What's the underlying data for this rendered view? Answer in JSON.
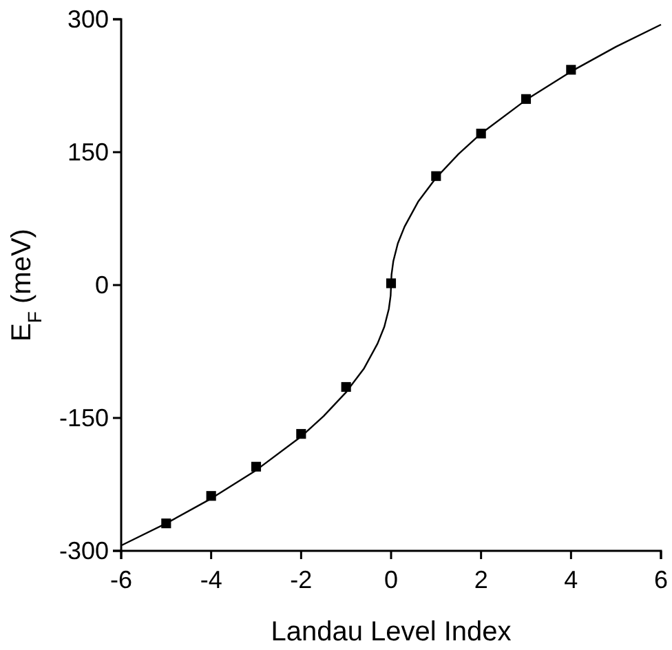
{
  "chart_data": {
    "type": "scatter",
    "xlabel": "Landau Level Index",
    "ylabel": "E$_{F}$ (meV)",
    "xlim": [
      -6,
      6
    ],
    "xticks": [
      -6,
      -4,
      -2,
      0,
      2,
      4,
      6
    ],
    "ylim": [
      -300,
      300
    ],
    "yticks": [
      -300,
      -150,
      0,
      150,
      300
    ],
    "series": [
      {
        "color": "#000000",
        "marker": "square",
        "x": [
          -5,
          -4,
          -3,
          -2,
          -1,
          0,
          1,
          2,
          3,
          4
        ],
        "values": [
          -269,
          -238,
          -205,
          -168,
          -115,
          2,
          123,
          171,
          210,
          243
        ]
      },
      {
        "type": "line",
        "color": "#000000",
        "marker": "none",
        "line_style": "solid",
        "x": [
          -6,
          -5,
          -4,
          -3,
          -2,
          -1.5,
          -1,
          -0.6,
          -0.3,
          -0.15,
          -0.05,
          -0.01,
          0,
          0.01,
          0.05,
          0.15,
          0.3,
          0.6,
          1,
          1.5,
          2,
          3,
          4,
          5,
          6
        ],
        "values": [
          -294,
          -269,
          -241,
          -209,
          -171,
          -148,
          -121,
          -94,
          -66,
          -47,
          -27,
          -12,
          0,
          12,
          27,
          47,
          66,
          94,
          121,
          148,
          171,
          209,
          241,
          269,
          294
        ]
      }
    ]
  }
}
